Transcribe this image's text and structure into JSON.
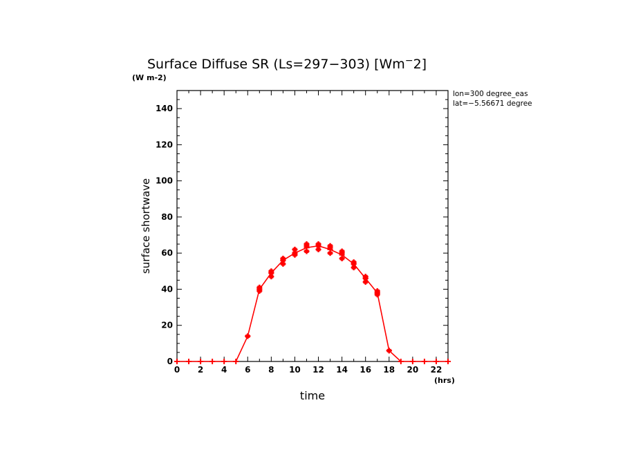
{
  "chart_data": {
    "type": "line",
    "title": "Surface Diffuse SR (Ls=297-303) [Wm^-2]",
    "title_main": "Surface Diffuse SR (Ls=297−303) [Wm",
    "title_sup": "−",
    "title_end": "2]",
    "units_label": "(W m-2)",
    "xlabel": "time",
    "ylabel": "surface shortwave",
    "x_units": "(hrs)",
    "xlim": [
      0,
      23
    ],
    "ylim": [
      0,
      150
    ],
    "x_ticks": [
      "0",
      "2",
      "4",
      "6",
      "8",
      "10",
      "12",
      "14",
      "16",
      "18",
      "20",
      "22"
    ],
    "y_ticks": [
      "0",
      "20",
      "40",
      "60",
      "80",
      "100",
      "120",
      "140"
    ],
    "annotations": [
      "lon=300 degree_eas",
      "lat=−5.56671 degree"
    ],
    "series_color": "#ff0000",
    "x": [
      0,
      1,
      2,
      3,
      4,
      5,
      6,
      7,
      8,
      9,
      10,
      11,
      12,
      13,
      14,
      15,
      16,
      17,
      18,
      19,
      20,
      21,
      22,
      23
    ],
    "values": [
      0,
      0,
      0,
      0,
      0,
      0,
      14,
      40,
      49,
      56,
      60,
      63,
      64,
      62,
      59,
      54,
      46,
      38,
      6,
      0,
      0,
      0,
      0,
      0
    ],
    "scatter": [
      {
        "x": 6,
        "ys": [
          14
        ]
      },
      {
        "x": 7,
        "ys": [
          39,
          41,
          40
        ]
      },
      {
        "x": 8,
        "ys": [
          47,
          50,
          49
        ]
      },
      {
        "x": 9,
        "ys": [
          54,
          57,
          56
        ]
      },
      {
        "x": 10,
        "ys": [
          59,
          62,
          60
        ]
      },
      {
        "x": 11,
        "ys": [
          61,
          64,
          65
        ]
      },
      {
        "x": 12,
        "ys": [
          62,
          64,
          65
        ]
      },
      {
        "x": 13,
        "ys": [
          60,
          63,
          64
        ]
      },
      {
        "x": 14,
        "ys": [
          57,
          60,
          61
        ]
      },
      {
        "x": 15,
        "ys": [
          52,
          54,
          55
        ]
      },
      {
        "x": 16,
        "ys": [
          44,
          46,
          47
        ]
      },
      {
        "x": 17,
        "ys": [
          37,
          38,
          39
        ]
      },
      {
        "x": 18,
        "ys": [
          6
        ]
      }
    ]
  }
}
